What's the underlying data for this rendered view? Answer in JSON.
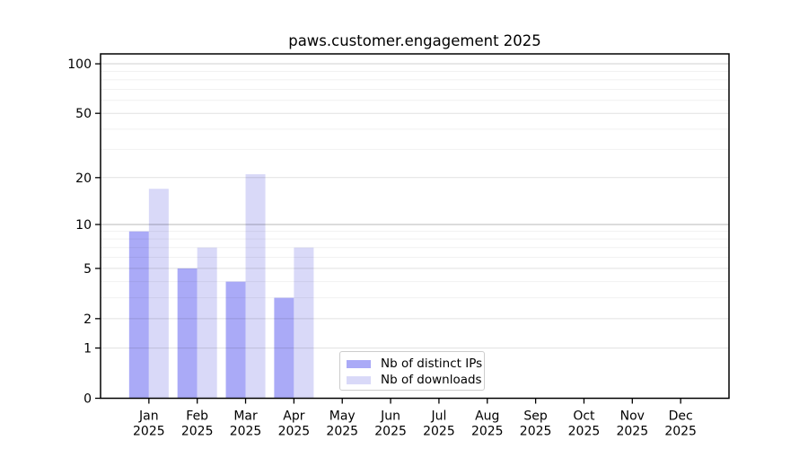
{
  "figure": {
    "title": "paws.customer.engagement 2025"
  },
  "colors": {
    "background": "#ffffff",
    "axis": "#000000",
    "tick_label": "#000000",
    "bar_ips": "#aaaaf7",
    "bar_downloads": "#d9d9f8",
    "grid_minor": "rgba(0,0,0,0.055)",
    "grid_major": "rgba(0,0,0,0.12)",
    "grid_line_10": "rgba(0,0,0,0.28)",
    "grid_line_100": "rgba(0,0,0,0.18)",
    "legend_border": "#cccccc"
  },
  "legend": {
    "items": [
      {
        "label": "Nb of distinct IPs",
        "color": "#aaaaf7"
      },
      {
        "label": "Nb of downloads",
        "color": "#d9d9f8"
      }
    ]
  },
  "chart_data": {
    "type": "bar",
    "title": "paws.customer.engagement 2025",
    "x_axis": {
      "months": [
        "Jan",
        "Feb",
        "Mar",
        "Apr",
        "May",
        "Jun",
        "Jul",
        "Aug",
        "Sep",
        "Oct",
        "Nov",
        "Dec"
      ],
      "year": "2025"
    },
    "categories": [
      "Jan 2025",
      "Feb 2025",
      "Mar 2025",
      "Apr 2025",
      "May 2025",
      "Jun 2025",
      "Jul 2025",
      "Aug 2025",
      "Sep 2025",
      "Oct 2025",
      "Nov 2025",
      "Dec 2025"
    ],
    "series": [
      {
        "name": "Nb of distinct IPs",
        "key": "ips",
        "color": "#aaaaf7",
        "values": [
          9,
          5,
          4,
          3,
          null,
          null,
          null,
          null,
          null,
          null,
          null,
          null
        ]
      },
      {
        "name": "Nb of downloads",
        "key": "downloads",
        "color": "#d9d9f8",
        "values": [
          17,
          7,
          21,
          7,
          null,
          null,
          null,
          null,
          null,
          null,
          null,
          null
        ]
      }
    ],
    "y_axis": {
      "scale": "log1p",
      "major_ticks": [
        0,
        1,
        2,
        5,
        10,
        20,
        50,
        100
      ],
      "minor_ticks": [
        3,
        4,
        6,
        7,
        8,
        9,
        30,
        40,
        60,
        70,
        80,
        90
      ],
      "ylim": [
        0,
        114
      ]
    },
    "grid": true,
    "grid_above_bars": true,
    "legend_position": "lower-center-left"
  }
}
